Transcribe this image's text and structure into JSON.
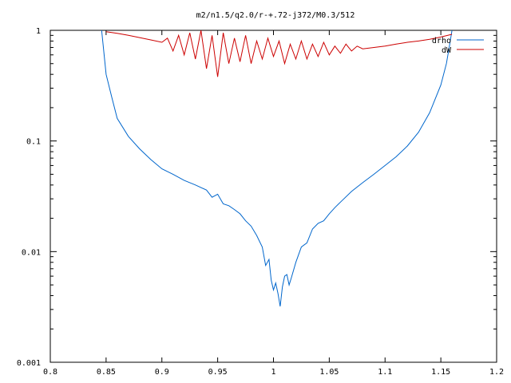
{
  "chart_data": {
    "type": "line",
    "title": "m2/n1.5/q2.0/r-+.72-j372/M0.3/512",
    "xlabel": "",
    "ylabel": "",
    "xlim": [
      0.8,
      1.2
    ],
    "ylim": [
      0.001,
      1
    ],
    "yscale": "log",
    "grid": false,
    "legend_position": "top-right",
    "x_ticks": [
      "0.8",
      "0.85",
      "0.9",
      "0.95",
      "1",
      "1.05",
      "1.1",
      "1.15",
      "1.2"
    ],
    "y_ticks": [
      "0.001",
      "0.01",
      "0.1",
      "1"
    ],
    "series": [
      {
        "name": "drho",
        "color": "#0066cc",
        "x": [
          0.846,
          0.85,
          0.855,
          0.86,
          0.87,
          0.88,
          0.89,
          0.9,
          0.91,
          0.92,
          0.93,
          0.94,
          0.945,
          0.95,
          0.955,
          0.96,
          0.965,
          0.97,
          0.975,
          0.98,
          0.985,
          0.99,
          0.993,
          0.996,
          0.998,
          1.0,
          1.002,
          1.004,
          1.006,
          1.008,
          1.01,
          1.012,
          1.014,
          1.016,
          1.02,
          1.025,
          1.03,
          1.035,
          1.04,
          1.045,
          1.05,
          1.055,
          1.06,
          1.07,
          1.08,
          1.09,
          1.1,
          1.11,
          1.12,
          1.13,
          1.14,
          1.15,
          1.155,
          1.158,
          1.16
        ],
        "y": [
          1.0,
          0.4,
          0.25,
          0.16,
          0.11,
          0.085,
          0.068,
          0.056,
          0.05,
          0.044,
          0.04,
          0.036,
          0.031,
          0.033,
          0.027,
          0.026,
          0.024,
          0.022,
          0.019,
          0.017,
          0.014,
          0.011,
          0.0075,
          0.0085,
          0.0055,
          0.0045,
          0.0052,
          0.0042,
          0.0032,
          0.0048,
          0.006,
          0.0062,
          0.005,
          0.0058,
          0.008,
          0.011,
          0.012,
          0.016,
          0.018,
          0.019,
          0.022,
          0.025,
          0.028,
          0.035,
          0.042,
          0.05,
          0.06,
          0.072,
          0.09,
          0.12,
          0.18,
          0.32,
          0.5,
          0.75,
          1.0
        ]
      },
      {
        "name": "dW",
        "color": "#cc0000",
        "x": [
          0.85,
          0.86,
          0.87,
          0.88,
          0.89,
          0.9,
          0.905,
          0.91,
          0.915,
          0.92,
          0.925,
          0.93,
          0.935,
          0.94,
          0.945,
          0.95,
          0.955,
          0.96,
          0.965,
          0.97,
          0.975,
          0.98,
          0.985,
          0.99,
          0.995,
          1.0,
          1.005,
          1.01,
          1.015,
          1.02,
          1.025,
          1.03,
          1.035,
          1.04,
          1.045,
          1.05,
          1.055,
          1.06,
          1.065,
          1.07,
          1.075,
          1.08,
          1.09,
          1.1,
          1.11,
          1.12,
          1.13,
          1.14,
          1.15,
          1.16
        ],
        "y": [
          0.97,
          0.94,
          0.9,
          0.86,
          0.82,
          0.78,
          0.85,
          0.65,
          0.9,
          0.6,
          0.95,
          0.55,
          1.0,
          0.45,
          0.9,
          0.38,
          0.95,
          0.5,
          0.85,
          0.52,
          0.9,
          0.5,
          0.8,
          0.55,
          0.85,
          0.58,
          0.8,
          0.5,
          0.75,
          0.55,
          0.8,
          0.55,
          0.75,
          0.58,
          0.78,
          0.6,
          0.72,
          0.62,
          0.75,
          0.65,
          0.72,
          0.68,
          0.7,
          0.72,
          0.75,
          0.78,
          0.8,
          0.83,
          0.87,
          0.92
        ]
      }
    ]
  }
}
